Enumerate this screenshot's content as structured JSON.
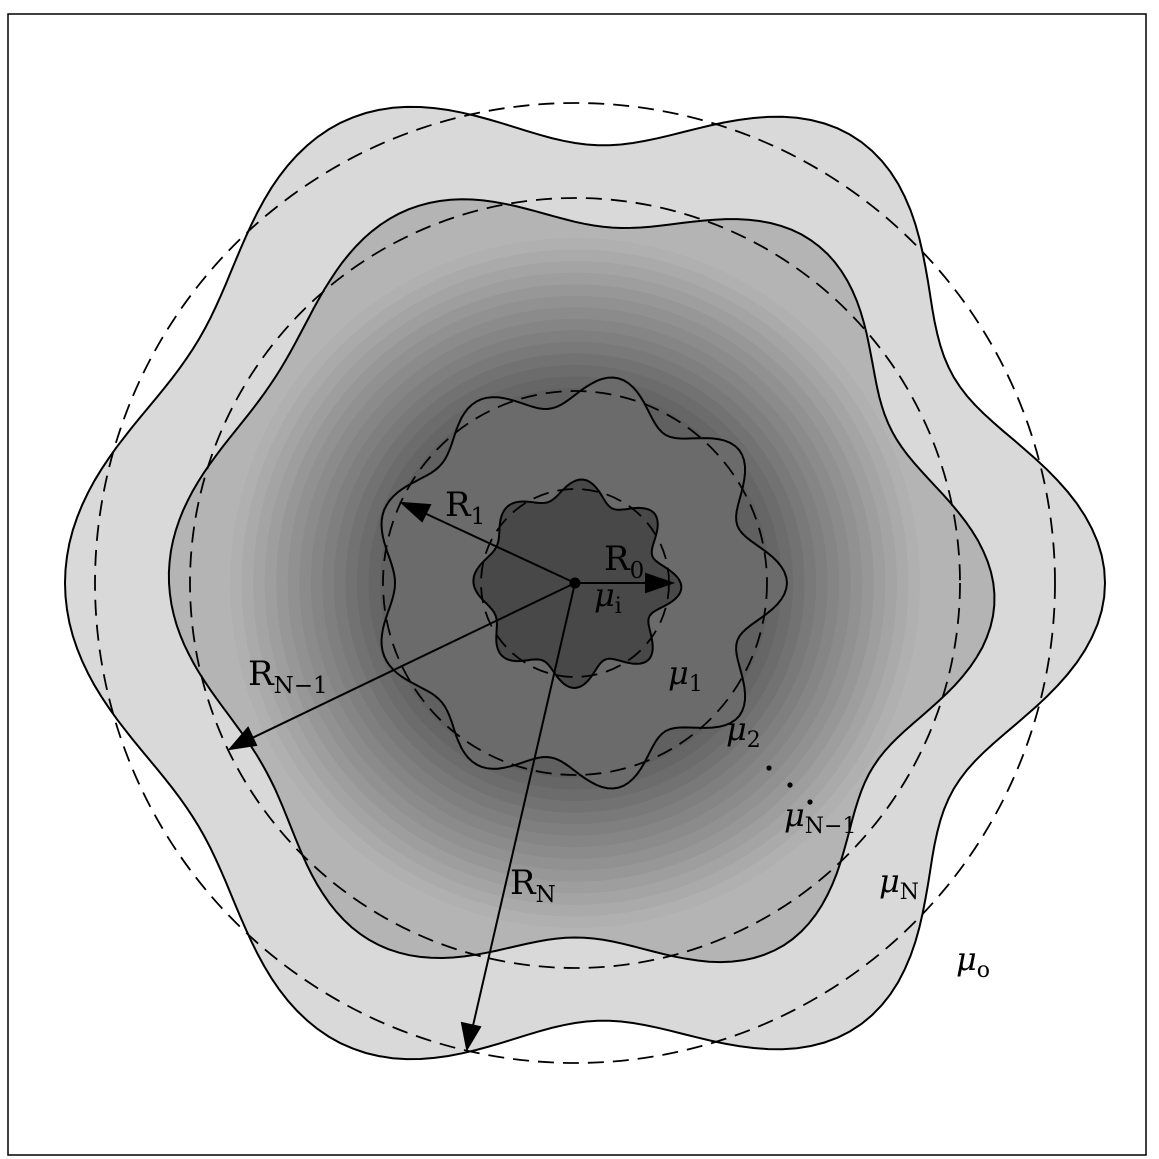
{
  "colors": {
    "background": "#ffffff",
    "frame": "#000000",
    "outer_layer": "#d9d9d9",
    "second_layer": "#b4b4b4",
    "first_layer": "#6b6b6b",
    "core": "#484848",
    "gradient_outer": "#b0b0b0",
    "gradient_inner": "#606060",
    "stroke": "#000000"
  },
  "labels": {
    "r0": {
      "base": "R",
      "sub": "0"
    },
    "r1": {
      "base": "R",
      "sub": "1"
    },
    "rn1": {
      "base": "R",
      "sub": "N−1"
    },
    "rn": {
      "base": "R",
      "sub": "N"
    },
    "mu_i": {
      "base": "μ",
      "sub": "i"
    },
    "mu_1": {
      "base": "μ",
      "sub": "1"
    },
    "mu_2": {
      "base": "μ",
      "sub": "2"
    },
    "mu_n1": {
      "base": "μ",
      "sub": "N−1"
    },
    "mu_n": {
      "base": "μ",
      "sub": "N"
    },
    "mu_o": {
      "base": "μ",
      "sub": "o"
    }
  },
  "layers": [
    {
      "id": "layer-N",
      "mean_radius": 480,
      "amplitude": 40,
      "lobes": 6,
      "phase": 0.0
    },
    {
      "id": "layer-N-1",
      "mean_radius": 385,
      "amplitude": 28,
      "lobes": 6,
      "phase": 0.25
    },
    {
      "id": "layer-1",
      "mean_radius": 192,
      "amplitude": 16,
      "lobes": 9,
      "phase": 0.0
    },
    {
      "id": "layer-0",
      "mean_radius": 94,
      "amplitude": 10,
      "lobes": 8,
      "phase": 0.3
    }
  ],
  "reference_circles": [
    480,
    385,
    192,
    94
  ],
  "gradient_rings": 14
}
